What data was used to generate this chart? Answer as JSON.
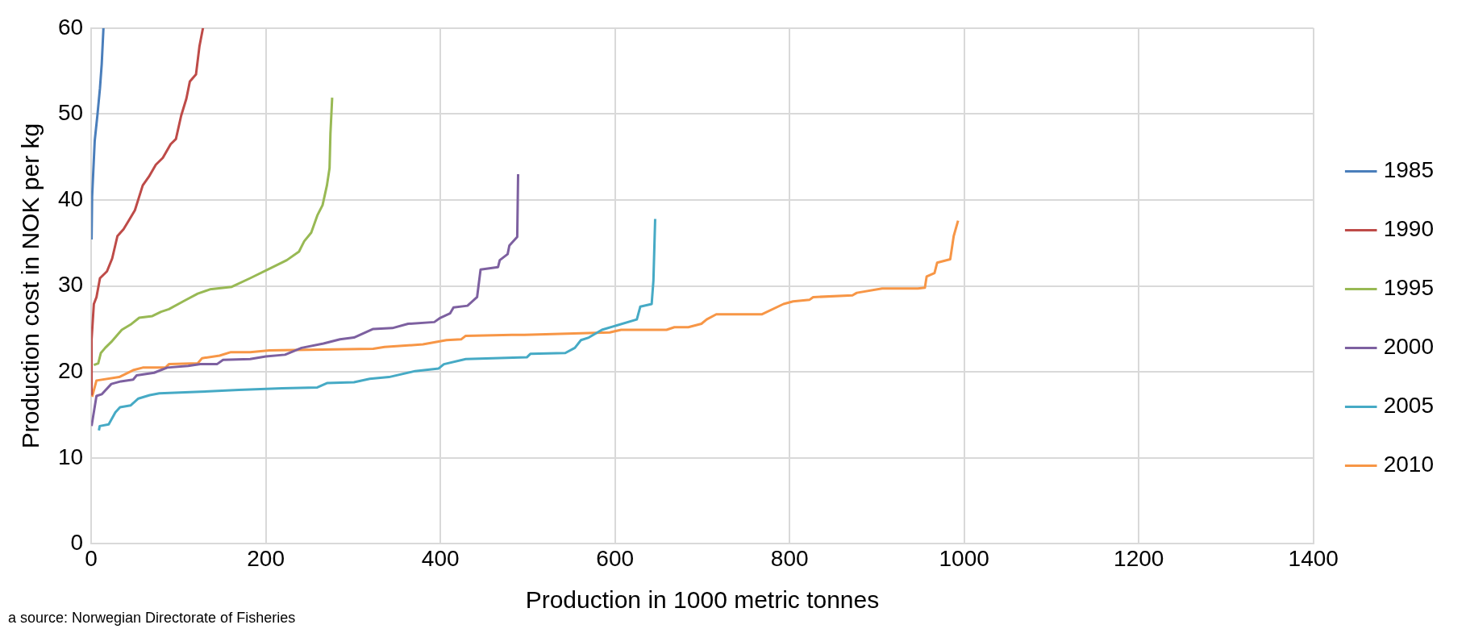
{
  "chart_data": {
    "type": "line",
    "xlabel": "Production in 1000 metric tonnes",
    "ylabel": "Production cost in NOK per kg",
    "xlim": [
      0,
      1400
    ],
    "xticks": [
      0,
      200,
      400,
      600,
      800,
      1000,
      1200,
      1400
    ],
    "ylim": [
      0,
      60
    ],
    "yticks": [
      0,
      10,
      20,
      30,
      40,
      50,
      60
    ],
    "grid": true,
    "legend": "right",
    "marker": "none",
    "line_style": "solid",
    "annotations": [
      "a source: Norwegian Directorate of Fisheries"
    ],
    "series": [
      {
        "name": "1985",
        "color": "#4a7ebb",
        "x": [
          0.4,
          1,
          4,
          7,
          10,
          12,
          14
        ],
        "values": [
          35.4,
          40.4,
          46.9,
          49.8,
          53.0,
          55.8,
          60
        ]
      },
      {
        "name": "1990",
        "color": "#be4b48",
        "x": [
          0,
          0.4,
          3,
          6,
          10,
          18,
          24,
          30,
          37,
          43,
          50,
          59,
          66,
          74,
          82,
          91,
          97,
          103,
          109,
          113,
          120,
          124,
          128
        ],
        "values": [
          17.4,
          23.8,
          27.9,
          28.7,
          30.9,
          31.7,
          33.2,
          35.8,
          36.6,
          37.6,
          38.8,
          41.7,
          42.7,
          44.1,
          44.9,
          46.5,
          47.1,
          49.8,
          51.8,
          53.8,
          54.6,
          57.9,
          60
        ]
      },
      {
        "name": "1995",
        "color": "#98b954",
        "x": [
          3,
          8,
          11,
          16,
          24,
          35,
          45,
          55,
          70,
          80,
          89,
          107,
          122,
          136,
          161,
          182,
          202,
          224,
          238,
          244,
          252,
          259,
          265,
          270,
          273,
          274,
          276
        ],
        "values": [
          20.8,
          21.0,
          22.2,
          22.8,
          23.6,
          24.9,
          25.5,
          26.3,
          26.5,
          27.0,
          27.3,
          28.3,
          29.1,
          29.6,
          29.9,
          30.9,
          31.9,
          33.0,
          34.0,
          35.2,
          36.2,
          38.2,
          39.4,
          41.7,
          43.7,
          47.7,
          51.9
        ]
      },
      {
        "name": "2000",
        "color": "#7d60a0",
        "x": [
          0.4,
          6,
          12,
          23,
          34,
          48,
          52,
          72,
          87,
          111,
          125,
          144,
          151,
          182,
          200,
          222,
          241,
          266,
          285,
          301,
          323,
          345,
          363,
          393,
          400,
          411,
          415,
          431,
          442,
          446,
          466,
          468,
          477,
          479,
          488,
          489
        ],
        "values": [
          13.7,
          17.2,
          17.4,
          18.6,
          18.9,
          19.1,
          19.6,
          19.9,
          20.5,
          20.7,
          20.9,
          20.9,
          21.4,
          21.5,
          21.8,
          22.0,
          22.8,
          23.3,
          23.8,
          24.0,
          25.0,
          25.1,
          25.6,
          25.8,
          26.3,
          26.8,
          27.5,
          27.7,
          28.7,
          31.9,
          32.2,
          33.0,
          33.7,
          34.7,
          35.7,
          43
        ]
      },
      {
        "name": "2005",
        "color": "#46aac5",
        "x": [
          8.8,
          9.7,
          20,
          27.7,
          33,
          45,
          54,
          67,
          78,
          125,
          169,
          219,
          259,
          270,
          301,
          319,
          341,
          371,
          398,
          404,
          429,
          499,
          503,
          543,
          554,
          561,
          570,
          585,
          625,
          629,
          642,
          644,
          646
        ],
        "values": [
          13.2,
          13.7,
          13.9,
          15.3,
          15.9,
          16.1,
          16.9,
          17.3,
          17.5,
          17.7,
          17.9,
          18.1,
          18.2,
          18.7,
          18.8,
          19.2,
          19.4,
          20.1,
          20.4,
          20.9,
          21.5,
          21.7,
          22.1,
          22.2,
          22.8,
          23.7,
          24.0,
          24.9,
          26.1,
          27.6,
          27.9,
          30.6,
          37.8
        ]
      },
      {
        "name": "2010",
        "color": "#f79646",
        "x": [
          1,
          6,
          32,
          48,
          59,
          85,
          89,
          122,
          127,
          147,
          160,
          182,
          204,
          323,
          336,
          380,
          407,
          424,
          429,
          482,
          496,
          594,
          607,
          659,
          668,
          684,
          699,
          705,
          716,
          768,
          793,
          804,
          823,
          827,
          872,
          877,
          906,
          947,
          955,
          957,
          966,
          969,
          984,
          988,
          993
        ],
        "values": [
          17.1,
          19.0,
          19.4,
          20.2,
          20.5,
          20.5,
          20.9,
          21.0,
          21.6,
          21.9,
          22.3,
          22.3,
          22.5,
          22.7,
          22.9,
          23.2,
          23.7,
          23.8,
          24.2,
          24.3,
          24.3,
          24.6,
          24.9,
          24.9,
          25.2,
          25.2,
          25.6,
          26.1,
          26.7,
          26.7,
          27.9,
          28.2,
          28.4,
          28.7,
          28.9,
          29.2,
          29.7,
          29.7,
          29.8,
          31.1,
          31.5,
          32.7,
          33.1,
          35.8,
          37.6
        ]
      }
    ]
  }
}
